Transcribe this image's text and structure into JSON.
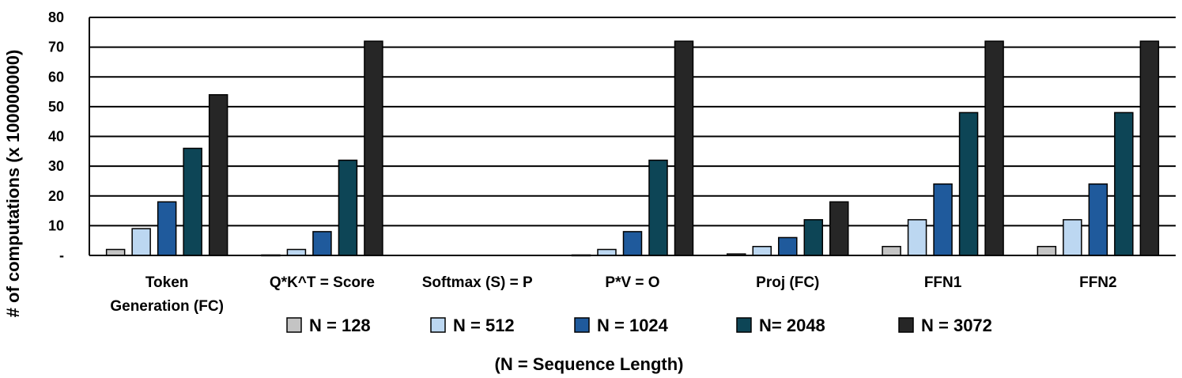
{
  "chart_data": {
    "type": "bar",
    "categories": [
      [
        "Token",
        "Generation (FC)"
      ],
      [
        "Q*K^T = Score"
      ],
      [
        "Softmax (S) = P"
      ],
      [
        "P*V = O"
      ],
      [
        "Proj (FC)"
      ],
      [
        "FFN1"
      ],
      [
        "FFN2"
      ]
    ],
    "series": [
      {
        "name": "N = 128",
        "color": "#c4c4c4",
        "values": [
          2,
          0.15,
          0,
          0.15,
          0.5,
          3,
          3
        ]
      },
      {
        "name": "N = 512",
        "color": "#bcd7f1",
        "values": [
          9,
          2,
          0,
          2,
          3,
          12,
          12
        ]
      },
      {
        "name": "N = 1024",
        "color": "#1f5a9c",
        "values": [
          18,
          8,
          0,
          8,
          6,
          24,
          24
        ]
      },
      {
        "name": "N= 2048",
        "color": "#0d4556",
        "values": [
          36,
          32,
          0,
          32,
          12,
          48,
          48
        ]
      },
      {
        "name": "N = 3072",
        "color": "#262626",
        "values": [
          54,
          72,
          0,
          72,
          18,
          72,
          72
        ]
      }
    ],
    "yticks": [
      {
        "value": 0,
        "label": "-"
      },
      {
        "value": 10,
        "label": "10"
      },
      {
        "value": 20,
        "label": "20"
      },
      {
        "value": 30,
        "label": "30"
      },
      {
        "value": 40,
        "label": "40"
      },
      {
        "value": 50,
        "label": "50"
      },
      {
        "value": 60,
        "label": "60"
      },
      {
        "value": 70,
        "label": "70"
      },
      {
        "value": 80,
        "label": "80"
      }
    ],
    "ylim": [
      0,
      80
    ],
    "ylabel": "# of computations (x 100000000)",
    "xlabel": "(N = Sequence Length)",
    "grid": true,
    "legend_position": "bottom"
  }
}
